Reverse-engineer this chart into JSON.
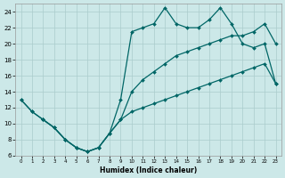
{
  "xlabel": "Humidex (Indice chaleur)",
  "background_color": "#cce8e8",
  "grid_color": "#aacccc",
  "line_color": "#006666",
  "xlim": [
    -0.5,
    23.5
  ],
  "ylim": [
    6,
    25
  ],
  "xticks": [
    0,
    1,
    2,
    3,
    4,
    5,
    6,
    7,
    8,
    9,
    10,
    11,
    12,
    13,
    14,
    15,
    16,
    17,
    18,
    19,
    20,
    21,
    22,
    23
  ],
  "yticks": [
    6,
    8,
    10,
    12,
    14,
    16,
    18,
    20,
    22,
    24
  ],
  "line_jagged_x": [
    0,
    1,
    2,
    3,
    4,
    5,
    6,
    7,
    8,
    9,
    10,
    11,
    12,
    13,
    14,
    15,
    16,
    17,
    18,
    19,
    20,
    21,
    22,
    23
  ],
  "line_jagged_y": [
    13,
    11.5,
    10.5,
    9.5,
    8,
    7,
    6.5,
    7,
    8.8,
    13,
    21.5,
    22,
    22.5,
    24.5,
    22.5,
    22,
    22,
    23,
    24.5,
    22.5,
    20,
    19.5,
    20,
    15
  ],
  "line_mid_x": [
    0,
    1,
    2,
    3,
    4,
    5,
    6,
    7,
    8,
    9,
    10,
    11,
    12,
    13,
    14,
    15,
    16,
    17,
    18,
    19,
    20,
    21,
    22,
    23
  ],
  "line_mid_y": [
    13,
    11.5,
    10.5,
    9.5,
    8,
    7,
    6.5,
    7,
    8.8,
    10.5,
    14,
    15.5,
    16.5,
    17.5,
    18.5,
    19,
    19.5,
    20,
    20.5,
    21,
    21,
    21.5,
    22.5,
    20
  ],
  "line_low_x": [
    2,
    3,
    4,
    5,
    6,
    7,
    8,
    9,
    10,
    11,
    12,
    13,
    14,
    15,
    16,
    17,
    18,
    19,
    20,
    21,
    22,
    23
  ],
  "line_low_y": [
    10.5,
    9.5,
    8,
    7,
    6.5,
    7,
    8.8,
    10.5,
    11.5,
    12,
    12.5,
    13,
    13.5,
    14,
    14.5,
    15,
    15.5,
    16,
    16.5,
    17,
    17.5,
    15
  ]
}
